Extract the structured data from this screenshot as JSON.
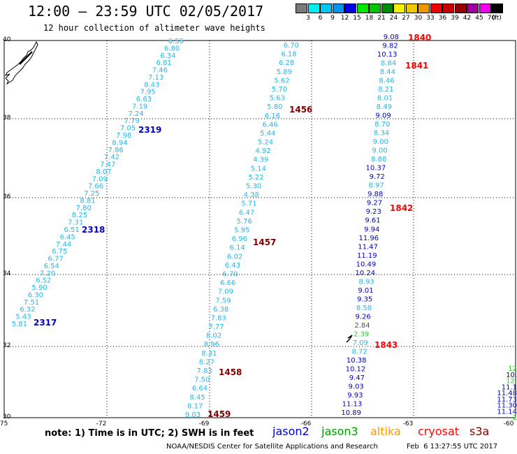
{
  "header": {
    "title": "12:00 – 23:59 UTC 02/05/2017",
    "subtitle": "12 hour collection of altimeter wave heights"
  },
  "colorbar": {
    "labels": [
      "3",
      "6",
      "9",
      "12",
      "15",
      "18",
      "21",
      "24",
      "27",
      "30",
      "33",
      "36",
      "39",
      "42",
      "45",
      "70",
      "(ft)"
    ],
    "colors": [
      "#7a7a7a",
      "#00f0f0",
      "#00c8f0",
      "#0096f0",
      "#0000e6",
      "#00e600",
      "#00c800",
      "#008c00",
      "#f0f000",
      "#f0c800",
      "#f09600",
      "#f00000",
      "#c80000",
      "#960000",
      "#a000a0",
      "#f000f0",
      "#000000"
    ]
  },
  "axes": {
    "lat_labels": [
      "40",
      "38",
      "36",
      "34",
      "32",
      "30"
    ],
    "lon_labels": [
      "-75",
      "-72",
      "-69",
      "-66",
      "-63",
      "-60"
    ]
  },
  "tracks": [
    {
      "name": "track-a",
      "color": "#22b8e8",
      "values": [
        "6.56",
        "6.80",
        "6.34",
        "6.81",
        "7.46",
        "7.13",
        "8.43",
        "7.95",
        "6.63",
        "7.19",
        "7.24",
        "7.79",
        "7.05",
        "7.98",
        "8.94",
        "7.86",
        "7.42",
        "7.47",
        "8.07",
        "7.09",
        "7.66",
        "7.25",
        "8.81",
        "7.80",
        "8.25",
        "7.31",
        "6.51",
        "6.45",
        "7.44",
        "6.75",
        "6.77",
        "6.54",
        "7.20",
        "6.52",
        "5.90",
        "6.30",
        "7.51",
        "6.32",
        "5.43",
        "5.81"
      ]
    },
    {
      "name": "track-b",
      "color": "#22b8e8",
      "values": [
        "6.70",
        "6.18",
        "6.28",
        "5.89",
        "5.62",
        "5.70",
        "5.63",
        "5.80",
        "6.16",
        "6.46",
        "5.44",
        "5.24",
        "4.92",
        "4.39",
        "5.14",
        "5.22",
        "5.30",
        "4.38",
        "5.71",
        "6.47",
        "5.76",
        "5.95",
        "6.96",
        "6.14",
        "6.02",
        "6.43",
        "6.70",
        "6.66",
        "7.09",
        "7.59",
        "6.38",
        "7.83",
        "7.77",
        "8.02",
        "8.96",
        "8.31",
        "8.27",
        "7.83",
        "7.50",
        "6.64",
        "8.45",
        "8.17",
        "9.03"
      ]
    },
    {
      "name": "track-c",
      "values": [
        {
          "v": "9.08",
          "c": "#0000cc"
        },
        {
          "v": "9.82",
          "c": "#0000cc"
        },
        {
          "v": "10.13",
          "c": "#0000cc"
        },
        {
          "v": "8.84",
          "c": "#22b8e8"
        },
        {
          "v": "8.44",
          "c": "#22b8e8"
        },
        {
          "v": "8.46",
          "c": "#22b8e8"
        },
        {
          "v": "8.21",
          "c": "#22b8e8"
        },
        {
          "v": "8.01",
          "c": "#22b8e8"
        },
        {
          "v": "8.49",
          "c": "#22b8e8"
        },
        {
          "v": "9.09",
          "c": "#0000cc"
        },
        {
          "v": "8.70",
          "c": "#22b8e8"
        },
        {
          "v": "8.34",
          "c": "#22b8e8"
        },
        {
          "v": "9.00",
          "c": "#22b8e8"
        },
        {
          "v": "9.00",
          "c": "#22b8e8"
        },
        {
          "v": "8.88",
          "c": "#22b8e8"
        },
        {
          "v": "10.37",
          "c": "#0000cc"
        },
        {
          "v": "9.72",
          "c": "#0000cc"
        },
        {
          "v": "8.97",
          "c": "#22b8e8"
        },
        {
          "v": "9.88",
          "c": "#0000cc"
        },
        {
          "v": "9.27",
          "c": "#0000cc"
        },
        {
          "v": "9.23",
          "c": "#0000cc"
        },
        {
          "v": "9.61",
          "c": "#0000cc"
        },
        {
          "v": "9.94",
          "c": "#0000cc"
        },
        {
          "v": "11.96",
          "c": "#0000cc"
        },
        {
          "v": "11.47",
          "c": "#0000cc"
        },
        {
          "v": "11.19",
          "c": "#0000cc"
        },
        {
          "v": "10.49",
          "c": "#0000cc"
        },
        {
          "v": "10.24",
          "c": "#0000cc"
        },
        {
          "v": "8.93",
          "c": "#22b8e8"
        },
        {
          "v": "9.01",
          "c": "#0000cc"
        },
        {
          "v": "9.35",
          "c": "#0000cc"
        },
        {
          "v": "8.58",
          "c": "#22b8e8"
        },
        {
          "v": "9.26",
          "c": "#0000cc"
        },
        {
          "v": "2.84",
          "c": "#555555"
        },
        {
          "v": "2.39",
          "c": "#33cc33"
        },
        {
          "v": "7.09",
          "c": "#22b8e8"
        },
        {
          "v": "8.72",
          "c": "#22b8e8"
        },
        {
          "v": "10.38",
          "c": "#0000cc"
        },
        {
          "v": "10.12",
          "c": "#0000cc"
        },
        {
          "v": "9.47",
          "c": "#0000cc"
        },
        {
          "v": "9.03",
          "c": "#0000cc"
        },
        {
          "v": "9.93",
          "c": "#0000cc"
        },
        {
          "v": "11.13",
          "c": "#0000cc"
        },
        {
          "v": "10.89",
          "c": "#0000cc"
        }
      ]
    },
    {
      "name": "track-d",
      "values": [
        {
          "v": "12",
          "c": "#33cc33"
        },
        {
          "v": "10.",
          "c": "#0000cc"
        },
        {
          "v": "12.",
          "c": "#33cc33"
        },
        {
          "v": "11.1",
          "c": "#0000cc"
        },
        {
          "v": "11.48",
          "c": "#0000cc"
        },
        {
          "v": "11.73",
          "c": "#0000cc"
        },
        {
          "v": "11.30",
          "c": "#0000cc"
        },
        {
          "v": "11.14",
          "c": "#0000cc"
        },
        {
          "v": "2",
          "c": "#33cc33"
        }
      ]
    }
  ],
  "time_labels": [
    {
      "text": "2319",
      "color": "#0000cc"
    },
    {
      "text": "2318",
      "color": "#0000cc"
    },
    {
      "text": "2317",
      "color": "#0000cc"
    },
    {
      "text": "1456",
      "color": "#800000"
    },
    {
      "text": "1457",
      "color": "#800000"
    },
    {
      "text": "1458",
      "color": "#800000"
    },
    {
      "text": "1459",
      "color": "#800000"
    },
    {
      "text": "1840",
      "color": "#ff0000"
    },
    {
      "text": "1841",
      "color": "#ff0000"
    },
    {
      "text": "1842",
      "color": "#ff0000"
    },
    {
      "text": "1843",
      "color": "#ff0000"
    }
  ],
  "footer": {
    "note": "note: 1) Time is in UTC; 2) SWH is in feet",
    "satellites": [
      {
        "name": "jason2",
        "color": "#0000cc"
      },
      {
        "name": "jason3",
        "color": "#00a000"
      },
      {
        "name": "altika",
        "color": "#ff9900"
      },
      {
        "name": "cryosat",
        "color": "#ff0000"
      },
      {
        "name": "s3a",
        "color": "#800000"
      }
    ],
    "credit": "NOAA/NESDIS Center for Satellite Applications and Research",
    "timestamp": "Feb  6 13:27:55 UTC 2017"
  }
}
